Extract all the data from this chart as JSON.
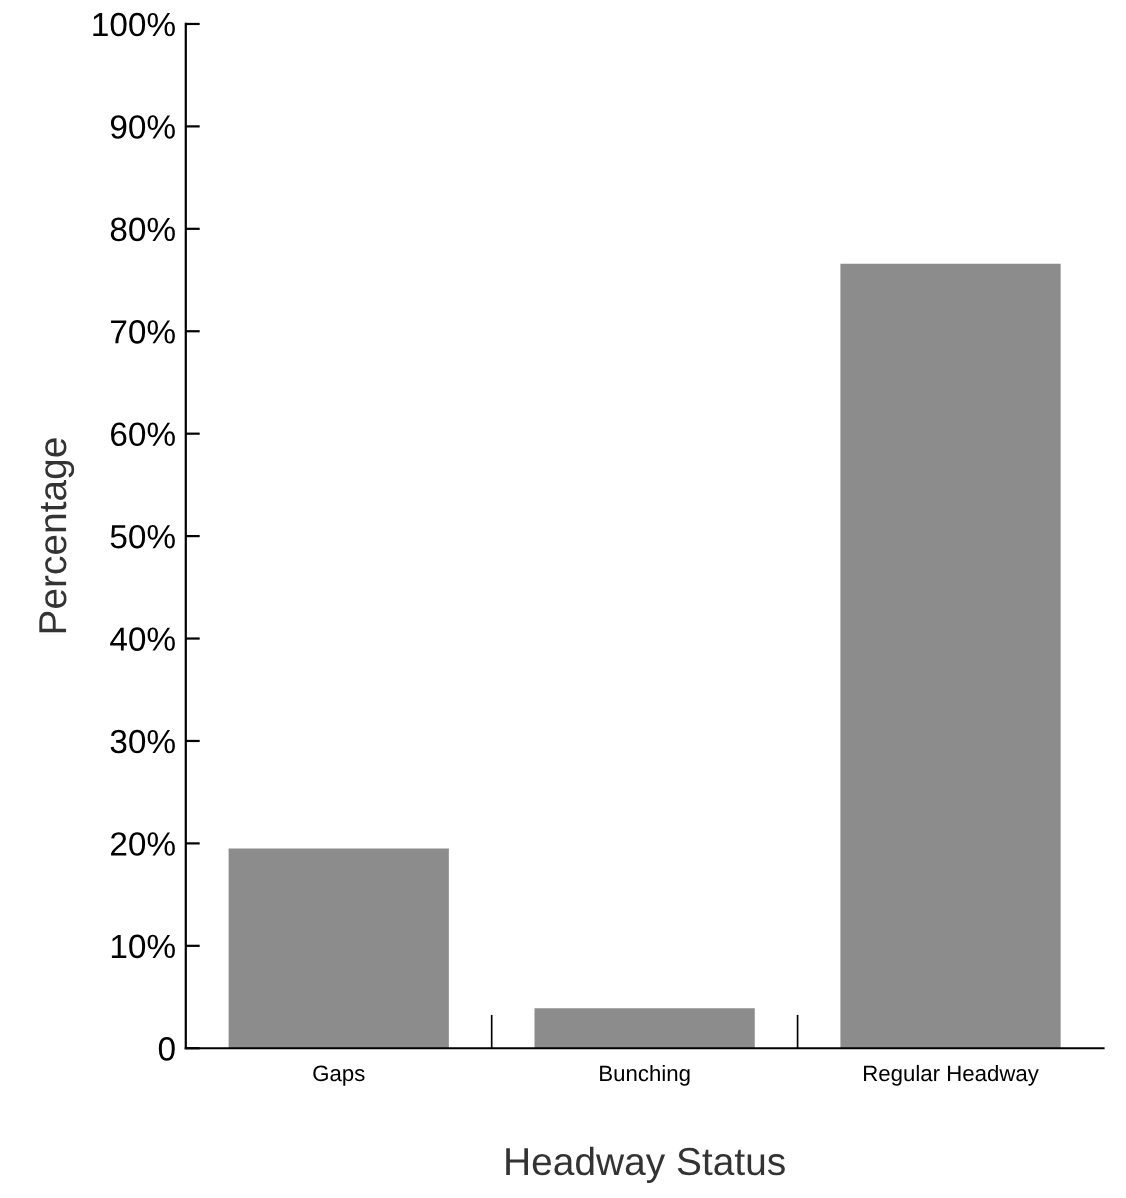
{
  "chart_data": {
    "type": "bar",
    "xlabel": "Headway Status",
    "ylabel": "Percentage",
    "categories": [
      "Gaps",
      "Bunching",
      "Regular Headway"
    ],
    "values": [
      19.5,
      3.9,
      76.6
    ],
    "color": "#8c8c8c",
    "ylim": [
      0,
      100
    ],
    "yticks": [
      0,
      {
        "value": 10,
        "label": "10%"
      },
      {
        "value": 20,
        "label": "20%"
      },
      {
        "value": 30,
        "label": "30%"
      },
      {
        "value": 40,
        "label": "40%"
      },
      {
        "value": 50,
        "label": "50%"
      },
      {
        "value": 60,
        "label": "60%"
      },
      {
        "value": 70,
        "label": "70%"
      },
      {
        "value": 80,
        "label": "80%"
      },
      {
        "value": 90,
        "label": "90%"
      },
      {
        "value": 100,
        "label": "100%"
      }
    ],
    "grid": false,
    "legend": false
  }
}
